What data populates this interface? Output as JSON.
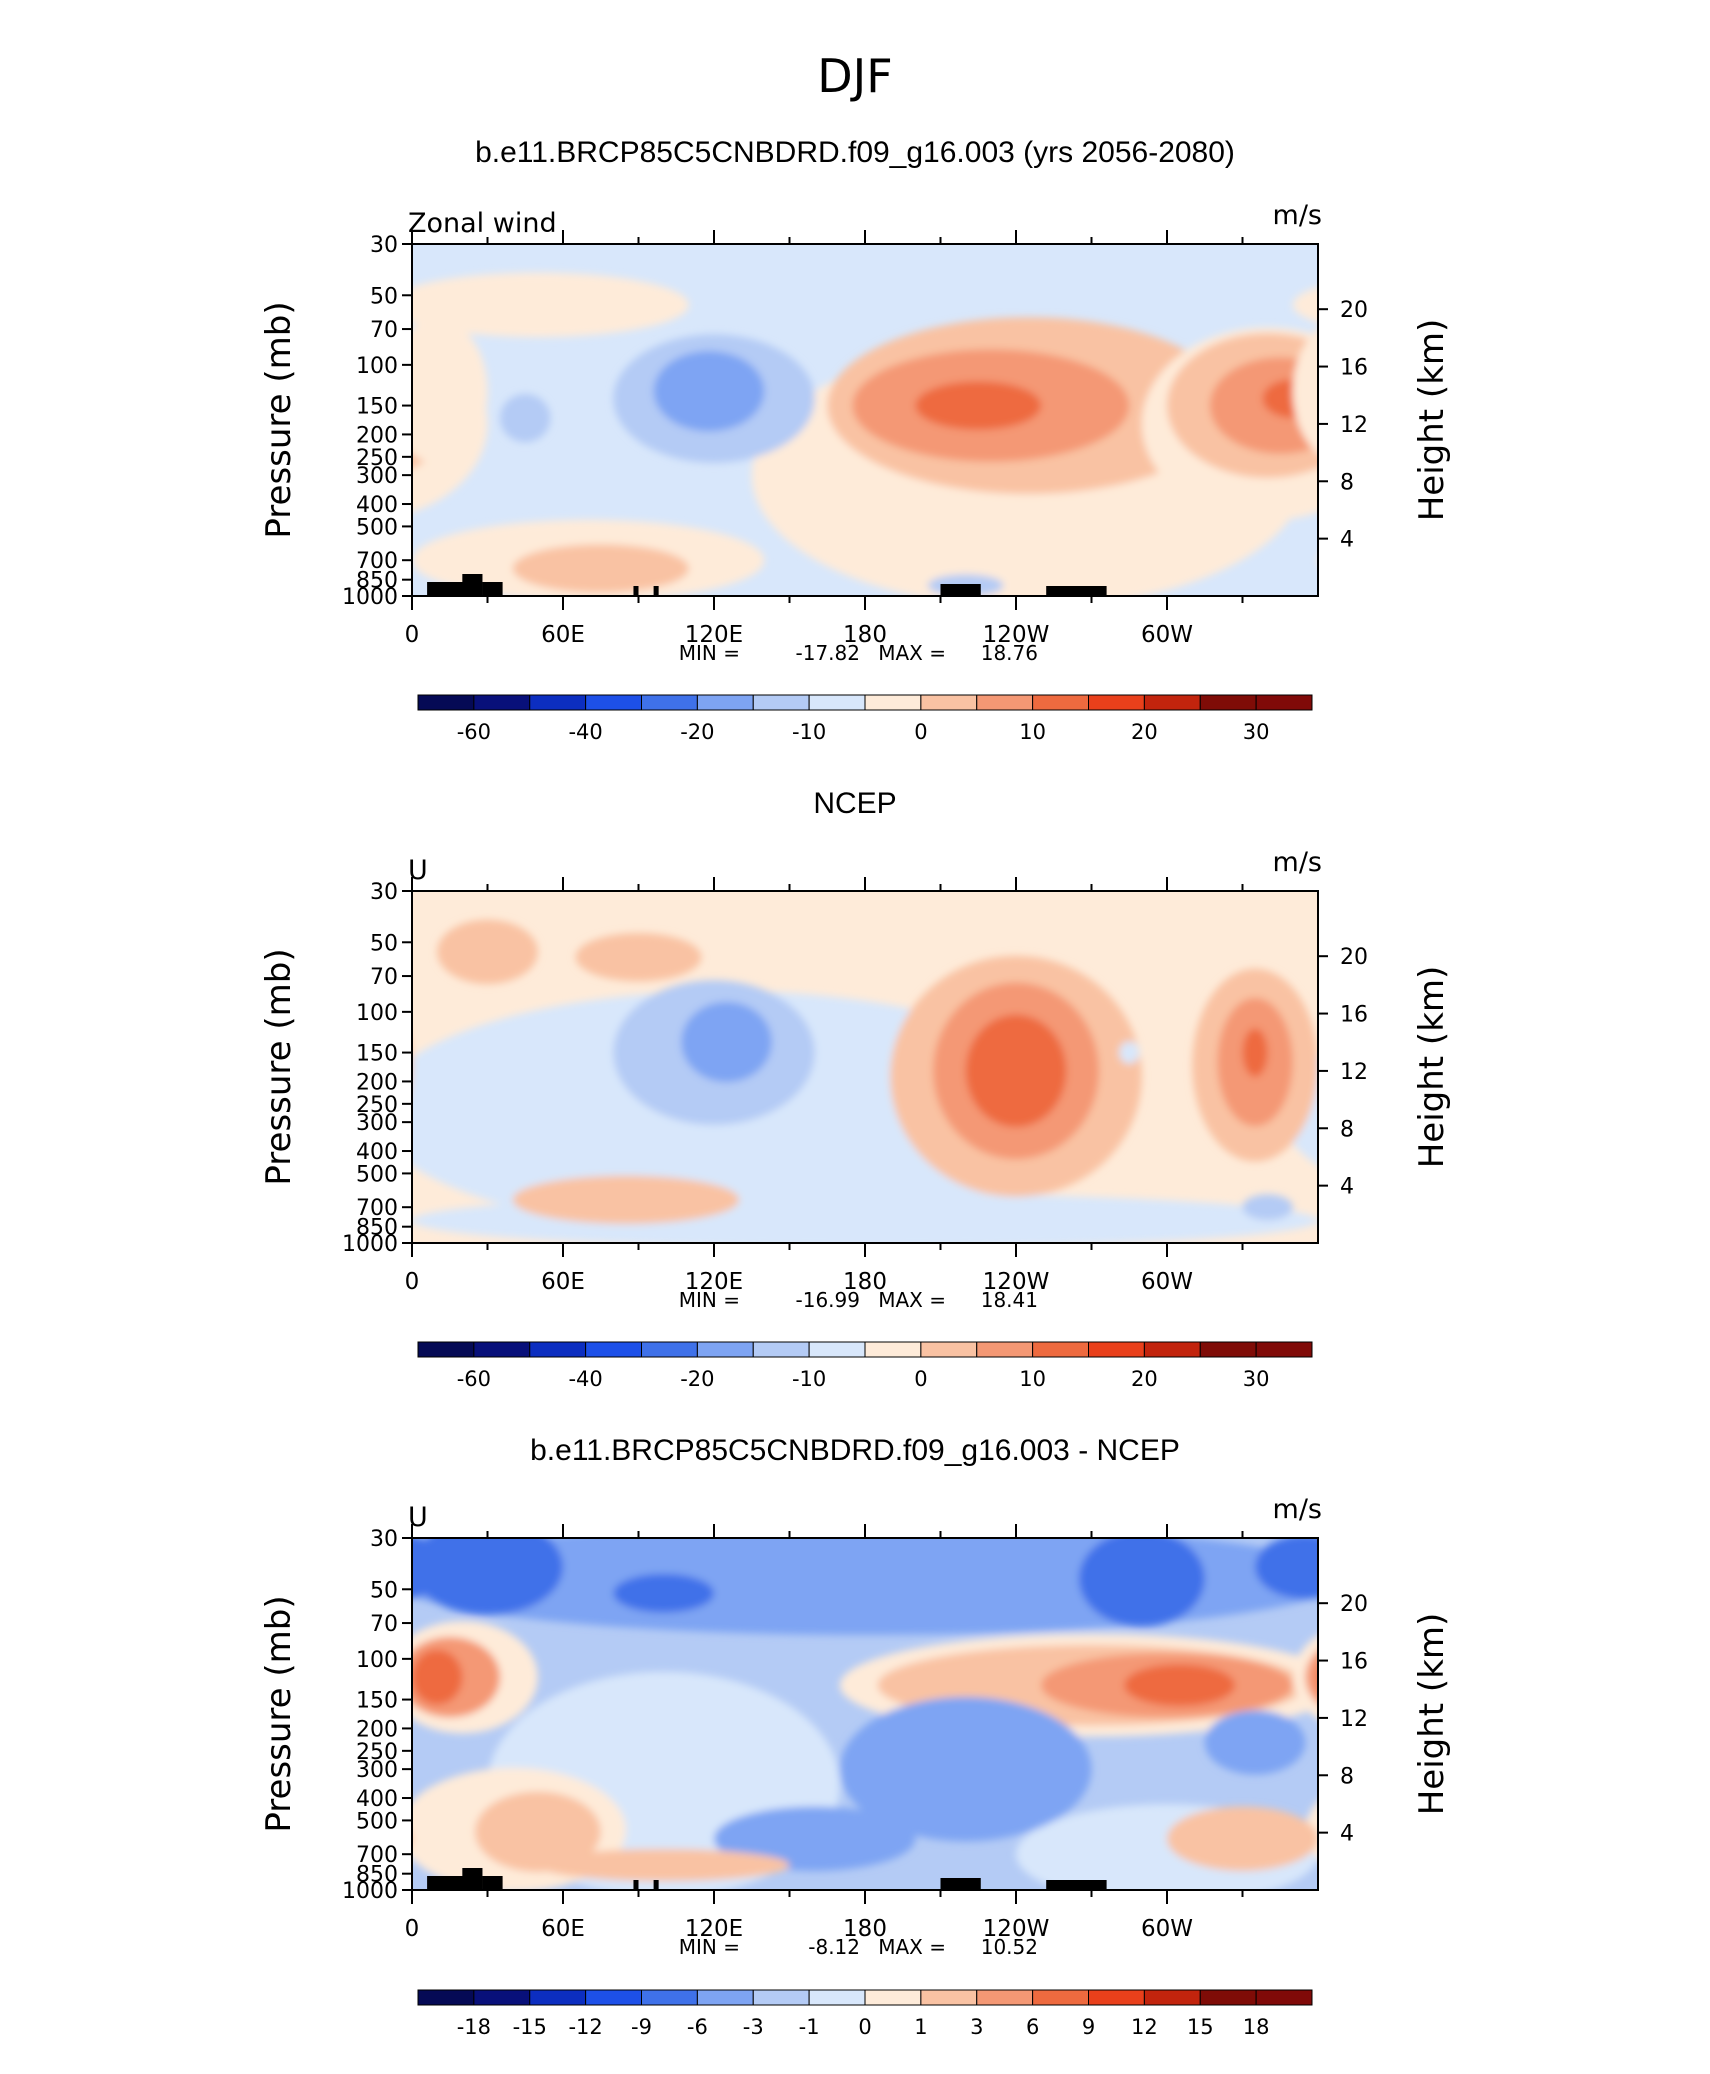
{
  "figure": {
    "title": "DJF",
    "colors": {
      "ramp_blue": [
        "#08107a",
        "#0c2ec0",
        "#1d50e8",
        "#3f71e9",
        "#7ea4f3",
        "#b4cbf5",
        "#d8e7fb"
      ],
      "ramp_red": [
        "#feebd9",
        "#f9c2a3",
        "#f49874",
        "#ee6a3f",
        "#e9401b",
        "#c2240d",
        "#7f0c07"
      ]
    }
  },
  "chart_data": [
    {
      "type": "heatmap",
      "title": "b.e11.BRCP85C5CNBDRD.f09_g16.003 (yrs 2056-2080)",
      "left_label": "Zonal wind",
      "units": "m/s",
      "ylabel": "Pressure (mb)",
      "y2label": "Height (km)",
      "xticks": [
        "0",
        "60E",
        "120E",
        "180",
        "120W",
        "60W"
      ],
      "yticks": [
        "30",
        "50",
        "70",
        "100",
        "150",
        "200",
        "250",
        "300",
        "400",
        "500",
        "700",
        "850",
        "1000"
      ],
      "y2ticks": [
        "20",
        "16",
        "12",
        "8",
        "4"
      ],
      "stats": {
        "min_label": "MIN =",
        "min": "-17.82",
        "max_label": "MAX =",
        "max": "18.76"
      },
      "levels": [
        "-60",
        "-40",
        "-20",
        "-10",
        "0",
        "10",
        "20",
        "30"
      ],
      "levels_fine": false,
      "background_level": -1,
      "cells": [
        {
          "level": 0,
          "lon": 245,
          "p": 300,
          "rx": 110,
          "rp": 0.9
        },
        {
          "level": 1,
          "lon": 245,
          "p": 150,
          "rx": 80,
          "rp": 0.55
        },
        {
          "level": 2,
          "lon": 230,
          "p": 150,
          "rx": 55,
          "rp": 0.35
        },
        {
          "level": 3,
          "lon": 225,
          "p": 150,
          "rx": 25,
          "rp": 0.15
        },
        {
          "level": 0,
          "lon": 340,
          "p": 180,
          "rx": 50,
          "rp": 0.6
        },
        {
          "level": 1,
          "lon": 340,
          "p": 150,
          "rx": 40,
          "rp": 0.45
        },
        {
          "level": 2,
          "lon": 345,
          "p": 150,
          "rx": 28,
          "rp": 0.3
        },
        {
          "level": 3,
          "lon": 350,
          "p": 140,
          "rx": 12,
          "rp": 0.12
        },
        {
          "level": 0,
          "lon": 50,
          "p": 55,
          "rx": 60,
          "rp": 0.2
        },
        {
          "level": 0,
          "lon": 10,
          "p": 130,
          "rx": 20,
          "rp": 0.45
        },
        {
          "level": 0,
          "lon": 70,
          "p": 700,
          "rx": 70,
          "rp": 0.28
        },
        {
          "level": 1,
          "lon": 75,
          "p": 760,
          "rx": 35,
          "rp": 0.15
        },
        {
          "level": -2,
          "lon": 120,
          "p": 140,
          "rx": 40,
          "rp": 0.4
        },
        {
          "level": -3,
          "lon": 118,
          "p": 130,
          "rx": 22,
          "rp": 0.25
        },
        {
          "level": -2,
          "lon": 45,
          "p": 170,
          "rx": 10,
          "rp": 0.15
        },
        {
          "level": -2,
          "lon": 220,
          "p": 900,
          "rx": 15,
          "rp": 0.07
        }
      ]
    },
    {
      "type": "heatmap",
      "title": "NCEP",
      "left_label": "U",
      "units": "m/s",
      "ylabel": "Pressure (mb)",
      "y2label": "Height (km)",
      "xticks": [
        "0",
        "60E",
        "120E",
        "180",
        "120W",
        "60W"
      ],
      "yticks": [
        "30",
        "50",
        "70",
        "100",
        "150",
        "200",
        "250",
        "300",
        "400",
        "500",
        "700",
        "850",
        "1000"
      ],
      "y2ticks": [
        "20",
        "16",
        "12",
        "8",
        "4"
      ],
      "stats": {
        "min_label": "MIN =",
        "min": "-16.99",
        "max_label": "MAX =",
        "max": "18.41"
      },
      "levels": [
        "-60",
        "-40",
        "-20",
        "-10",
        "0",
        "10",
        "20",
        "30"
      ],
      "levels_fine": false,
      "background_level": 0,
      "cells": [
        {
          "level": -1,
          "lon": 125,
          "p": 270,
          "rx": 140,
          "rp": 0.75
        },
        {
          "level": -1,
          "lon": 180,
          "p": 800,
          "rx": 180,
          "rp": 0.2
        },
        {
          "level": -2,
          "lon": 120,
          "p": 150,
          "rx": 40,
          "rp": 0.45
        },
        {
          "level": -3,
          "lon": 125,
          "p": 135,
          "rx": 18,
          "rp": 0.25
        },
        {
          "level": 1,
          "lon": 240,
          "p": 190,
          "rx": 50,
          "rp": 0.75
        },
        {
          "level": 2,
          "lon": 240,
          "p": 180,
          "rx": 33,
          "rp": 0.55
        },
        {
          "level": 3,
          "lon": 240,
          "p": 180,
          "rx": 20,
          "rp": 0.35
        },
        {
          "level": 1,
          "lon": 335,
          "p": 170,
          "rx": 25,
          "rp": 0.6
        },
        {
          "level": 2,
          "lon": 335,
          "p": 165,
          "rx": 15,
          "rp": 0.4
        },
        {
          "level": 3,
          "lon": 335,
          "p": 150,
          "rx": 5,
          "rp": 0.15
        },
        {
          "level": 1,
          "lon": 30,
          "p": 55,
          "rx": 20,
          "rp": 0.2
        },
        {
          "level": 1,
          "lon": 90,
          "p": 58,
          "rx": 25,
          "rp": 0.15
        },
        {
          "level": 1,
          "lon": 85,
          "p": 650,
          "rx": 45,
          "rp": 0.15
        },
        {
          "level": -2,
          "lon": 340,
          "p": 700,
          "rx": 10,
          "rp": 0.08
        },
        {
          "level": -1,
          "lon": 285,
          "p": 150,
          "rx": 4,
          "rp": 0.07
        }
      ]
    },
    {
      "type": "heatmap",
      "title": "b.e11.BRCP85C5CNBDRD.f09_g16.003 - NCEP",
      "left_label": "U",
      "units": "m/s",
      "ylabel": "Pressure (mb)",
      "y2label": "Height (km)",
      "xticks": [
        "0",
        "60E",
        "120E",
        "180",
        "120W",
        "60W"
      ],
      "yticks": [
        "30",
        "50",
        "70",
        "100",
        "150",
        "200",
        "250",
        "300",
        "400",
        "500",
        "700",
        "850",
        "1000"
      ],
      "y2ticks": [
        "20",
        "16",
        "12",
        "8",
        "4"
      ],
      "stats": {
        "min_label": "MIN =",
        "min": "-8.12",
        "max_label": "MAX =",
        "max": "10.52"
      },
      "levels": [
        "-18",
        "-15",
        "-12",
        "-9",
        "-6",
        "-3",
        "-1",
        "0",
        "1",
        "3",
        "6",
        "9",
        "12",
        "15",
        "18"
      ],
      "levels_fine": true,
      "background_level": -2,
      "cells": [
        {
          "level": -3,
          "lon": 180,
          "p": 45,
          "rx": 190,
          "rp": 0.35
        },
        {
          "level": -4,
          "lon": 30,
          "p": 40,
          "rx": 30,
          "rp": 0.3
        },
        {
          "level": -4,
          "lon": 290,
          "p": 45,
          "rx": 25,
          "rp": 0.3
        },
        {
          "level": -4,
          "lon": 100,
          "p": 52,
          "rx": 20,
          "rp": 0.12
        },
        {
          "level": -4,
          "lon": 355,
          "p": 40,
          "rx": 20,
          "rp": 0.2
        },
        {
          "level": 0,
          "lon": 270,
          "p": 130,
          "rx": 100,
          "rp": 0.32
        },
        {
          "level": 1,
          "lon": 270,
          "p": 130,
          "rx": 85,
          "rp": 0.25
        },
        {
          "level": 2,
          "lon": 300,
          "p": 130,
          "rx": 50,
          "rp": 0.2
        },
        {
          "level": 3,
          "lon": 305,
          "p": 130,
          "rx": 22,
          "rp": 0.13
        },
        {
          "level": 0,
          "lon": 20,
          "p": 120,
          "rx": 30,
          "rp": 0.35
        },
        {
          "level": 2,
          "lon": 15,
          "p": 120,
          "rx": 20,
          "rp": 0.25
        },
        {
          "level": 3,
          "lon": 10,
          "p": 120,
          "rx": 10,
          "rp": 0.17
        },
        {
          "level": -1,
          "lon": 100,
          "p": 350,
          "rx": 70,
          "rp": 0.75
        },
        {
          "level": -1,
          "lon": 300,
          "p": 700,
          "rx": 60,
          "rp": 0.4
        },
        {
          "level": -3,
          "lon": 220,
          "p": 300,
          "rx": 50,
          "rp": 0.45
        },
        {
          "level": -3,
          "lon": 160,
          "p": 600,
          "rx": 40,
          "rp": 0.2
        },
        {
          "level": -3,
          "lon": 335,
          "p": 230,
          "rx": 20,
          "rp": 0.2
        },
        {
          "level": 0,
          "lon": 40,
          "p": 550,
          "rx": 45,
          "rp": 0.4
        },
        {
          "level": 1,
          "lon": 50,
          "p": 560,
          "rx": 25,
          "rp": 0.25
        },
        {
          "level": 1,
          "lon": 100,
          "p": 780,
          "rx": 50,
          "rp": 0.1
        },
        {
          "level": 1,
          "lon": 330,
          "p": 600,
          "rx": 30,
          "rp": 0.2
        }
      ]
    }
  ]
}
